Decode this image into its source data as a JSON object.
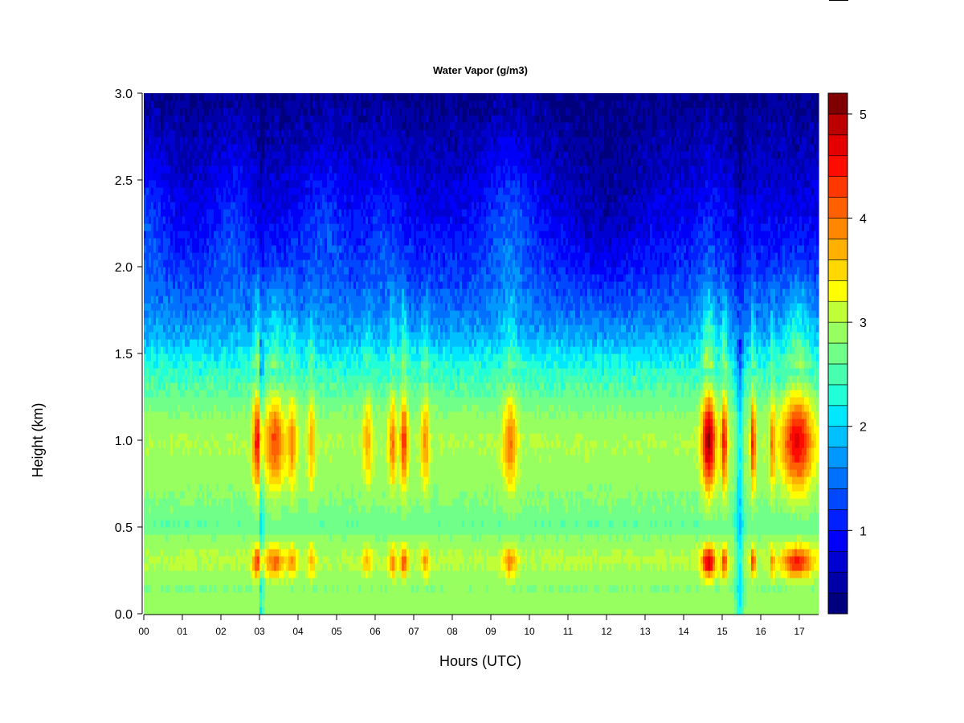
{
  "chart_data": {
    "type": "heatmap",
    "title": "Water Vapor (g/m3)",
    "xlabel": "Hours (UTC)",
    "ylabel": "Height (km)",
    "xlim": [
      0,
      17.5
    ],
    "ylim": [
      0,
      3.0
    ],
    "x_ticks": [
      "00",
      "01",
      "02",
      "03",
      "04",
      "05",
      "06",
      "07",
      "08",
      "09",
      "10",
      "11",
      "12",
      "13",
      "14",
      "15",
      "16",
      "17"
    ],
    "y_ticks": [
      "0.0",
      "0.5",
      "1.0",
      "1.5",
      "2.0",
      "2.5",
      "3.0"
    ],
    "y_tick_values": [
      0,
      0.5,
      1.0,
      1.5,
      2.0,
      2.5,
      3.0
    ],
    "colorbar": {
      "min": 0.2,
      "max": 5.2,
      "ticks": [
        "1",
        "2",
        "3",
        "4",
        "5"
      ],
      "tick_values": [
        1,
        2,
        3,
        4,
        5
      ],
      "colors": [
        "#00007F",
        "#0000A8",
        "#0000D0",
        "#0000F8",
        "#0020FF",
        "#0048FF",
        "#0070FF",
        "#0098FF",
        "#00C0FF",
        "#00E8FF",
        "#20FFD8",
        "#48FFB0",
        "#70FF88",
        "#98FF60",
        "#C0FF38",
        "#FFFF00",
        "#FFD800",
        "#FFB000",
        "#FF8800",
        "#FF6000",
        "#FF3800",
        "#FF0C00",
        "#E40000",
        "#BC0000",
        "#7F0000"
      ]
    },
    "profile": {
      "height_km": [
        0.0,
        0.05,
        0.15,
        0.3,
        0.42,
        0.5,
        0.6,
        0.8,
        1.0,
        1.2,
        1.4,
        1.5,
        1.6,
        1.75,
        2.0,
        2.3,
        2.6,
        3.0
      ],
      "base_water_vapor": [
        2.9,
        2.95,
        2.8,
        3.05,
        2.9,
        2.6,
        2.75,
        2.9,
        3.0,
        2.75,
        2.35,
        2.1,
        1.8,
        1.5,
        1.15,
        0.85,
        0.6,
        0.35
      ]
    },
    "moist_events": [
      {
        "hour": 2.95,
        "width": 0.12,
        "strength": 1.6
      },
      {
        "hour": 3.4,
        "width": 0.25,
        "strength": 1.25
      },
      {
        "hour": 3.85,
        "width": 0.12,
        "strength": 0.9
      },
      {
        "hour": 4.35,
        "width": 0.1,
        "strength": 0.8
      },
      {
        "hour": 5.8,
        "width": 0.12,
        "strength": 0.75
      },
      {
        "hour": 6.45,
        "width": 0.1,
        "strength": 1.05
      },
      {
        "hour": 6.75,
        "width": 0.1,
        "strength": 1.4
      },
      {
        "hour": 7.3,
        "width": 0.1,
        "strength": 0.95
      },
      {
        "hour": 9.5,
        "width": 0.18,
        "strength": 1.05
      },
      {
        "hour": 14.65,
        "width": 0.18,
        "strength": 2.1
      },
      {
        "hour": 15.05,
        "width": 0.08,
        "strength": 1.6
      },
      {
        "hour": 15.8,
        "width": 0.06,
        "strength": 1.55
      },
      {
        "hour": 16.3,
        "width": 0.06,
        "strength": 1.0
      },
      {
        "hour": 16.95,
        "width": 0.4,
        "strength": 1.7
      }
    ],
    "dry_columns": [
      {
        "hour": 3.05,
        "width": 0.05
      },
      {
        "hour": 15.45,
        "width": 0.1
      }
    ],
    "upper_moisture_plumes": [
      {
        "hour": 0.1,
        "width": 0.5,
        "strength": 0.4
      },
      {
        "hour": 2.3,
        "width": 0.5,
        "strength": 0.35
      },
      {
        "hour": 4.7,
        "width": 0.6,
        "strength": 0.35
      },
      {
        "hour": 6.2,
        "width": 0.5,
        "strength": 0.3
      },
      {
        "hour": 9.5,
        "width": 0.7,
        "strength": 0.5
      },
      {
        "hour": 12.0,
        "width": 1.0,
        "strength": -0.3
      },
      {
        "hour": 14.7,
        "width": 0.4,
        "strength": 0.2
      }
    ]
  }
}
